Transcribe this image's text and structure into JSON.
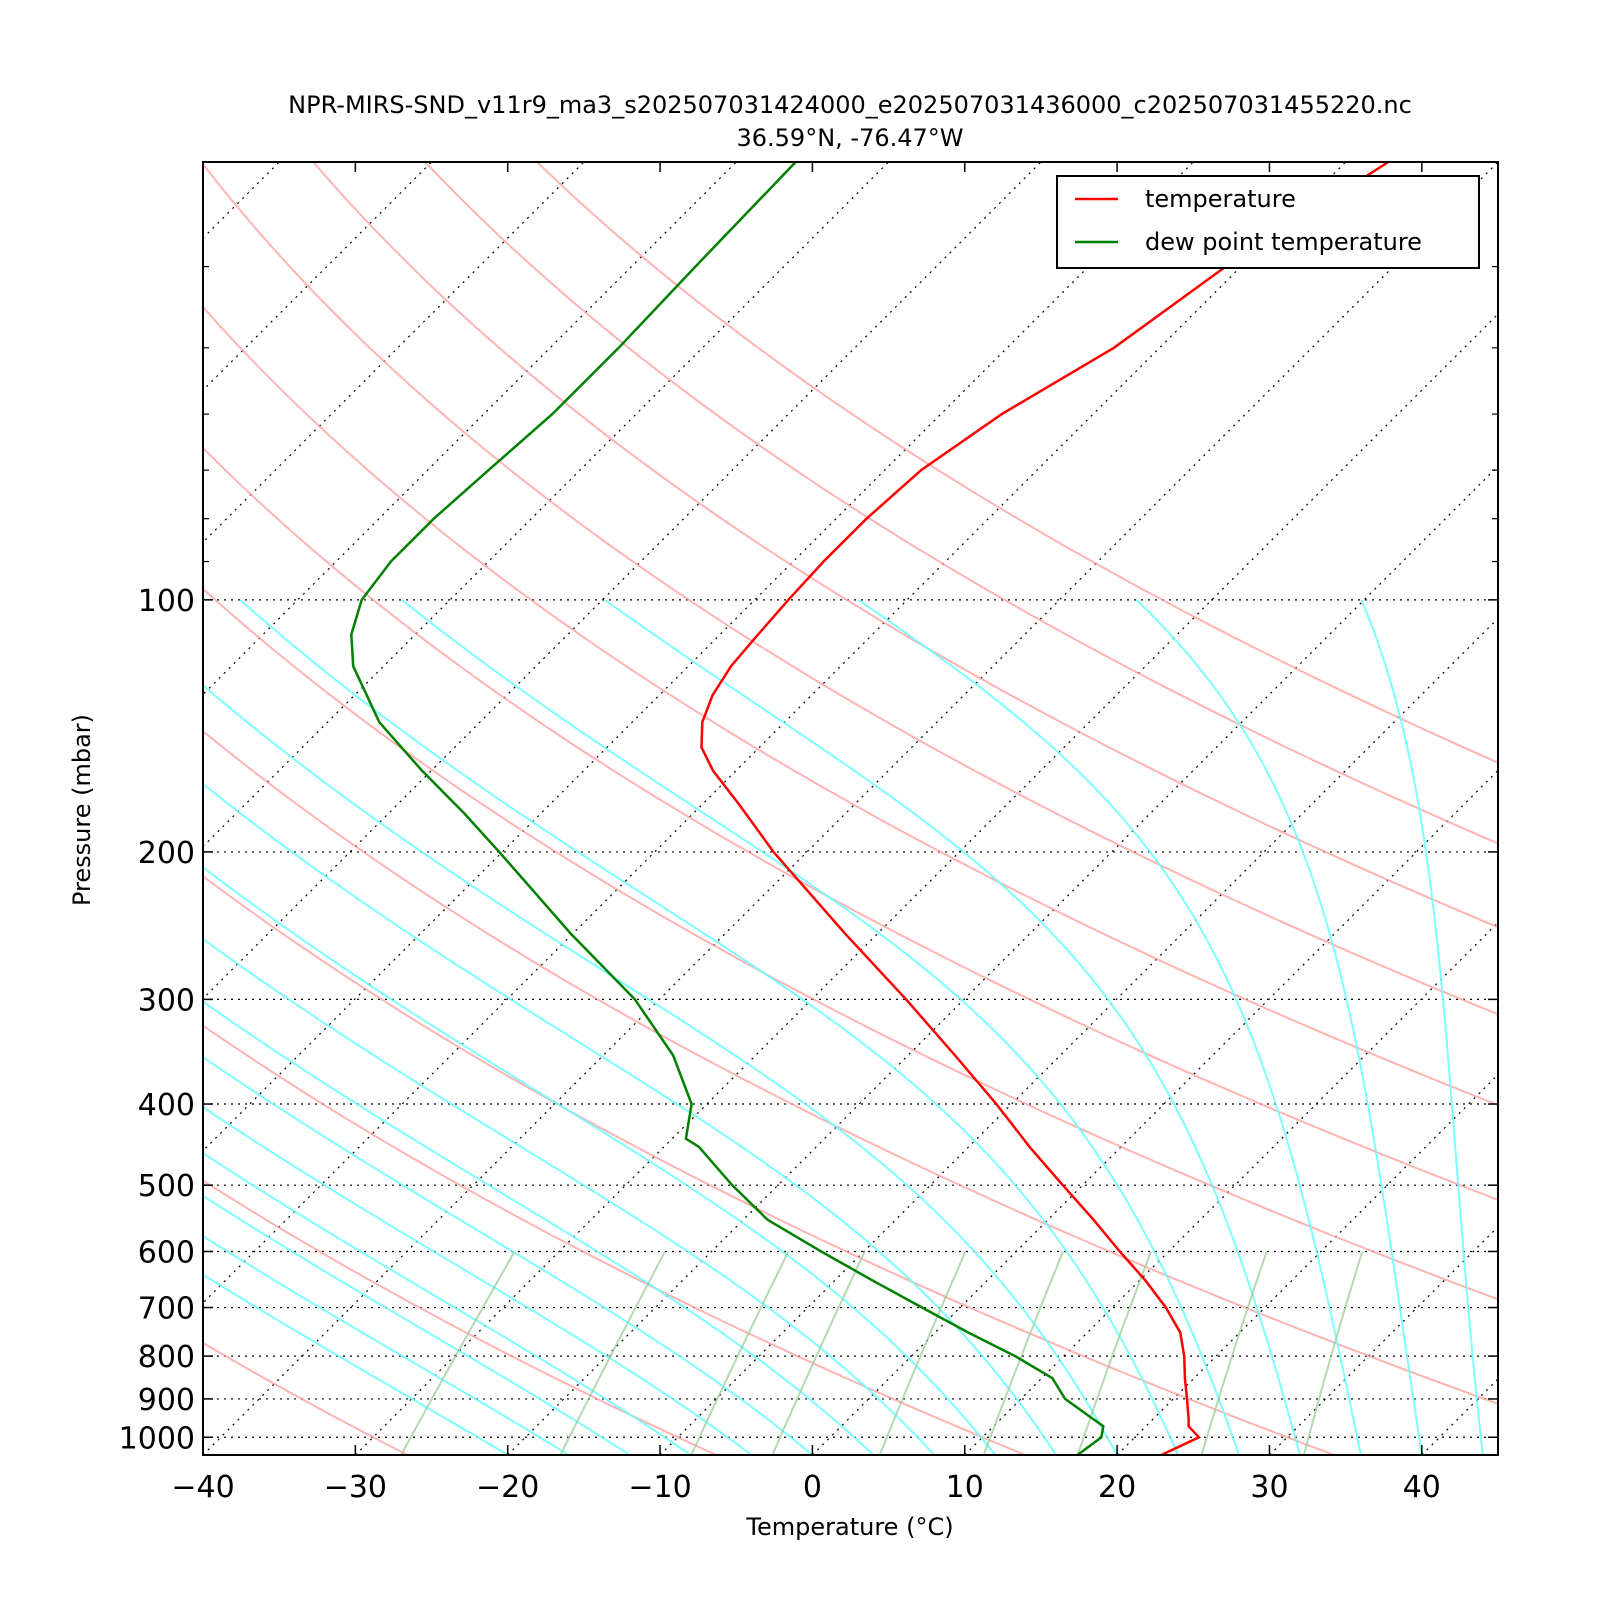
{
  "chart_data": {
    "type": "line",
    "title": "NPR-MIRS-SND_v11r9_ma3_s202507031424000_e202507031436000_c202507031455220.nc",
    "subtitle": "36.59°N, -76.47°W",
    "xlabel": "Temperature (°C)",
    "ylabel": "Pressure (mbar)",
    "xlim": [
      -40,
      45
    ],
    "ylim": [
      1050,
      30
    ],
    "y_scale": "log",
    "skew": true,
    "x_ticks": [
      -40,
      -30,
      -20,
      -10,
      0,
      10,
      20,
      30,
      40
    ],
    "x_tick_labels": [
      "−40",
      "−30",
      "−20",
      "−10",
      "0",
      "10",
      "20",
      "30",
      "40"
    ],
    "y_ticks": [
      100,
      200,
      300,
      400,
      500,
      600,
      700,
      800,
      900,
      1000
    ],
    "y_tick_labels": [
      "100",
      "200",
      "300",
      "400",
      "500",
      "600",
      "700",
      "800",
      "900",
      "1000"
    ],
    "grid": true,
    "legend_position": "top-right",
    "series": [
      {
        "name": "temperature",
        "color": "#ff0000",
        "points": [
          {
            "p": 1050,
            "t": 22.9
          },
          {
            "p": 1000,
            "t": 24.2
          },
          {
            "p": 970,
            "t": 22.8
          },
          {
            "p": 950,
            "t": 22.3
          },
          {
            "p": 900,
            "t": 20.9
          },
          {
            "p": 850,
            "t": 19.4
          },
          {
            "p": 800,
            "t": 17.9
          },
          {
            "p": 750,
            "t": 16.1
          },
          {
            "p": 700,
            "t": 13.5
          },
          {
            "p": 650,
            "t": 10.4
          },
          {
            "p": 600,
            "t": 6.8
          },
          {
            "p": 550,
            "t": 3.0
          },
          {
            "p": 500,
            "t": -1.3
          },
          {
            "p": 450,
            "t": -6.0
          },
          {
            "p": 400,
            "t": -11.0
          },
          {
            "p": 350,
            "t": -16.9
          },
          {
            "p": 300,
            "t": -23.8
          },
          {
            "p": 250,
            "t": -32.2
          },
          {
            "p": 200,
            "t": -42.2
          },
          {
            "p": 175,
            "t": -47.7
          },
          {
            "p": 160,
            "t": -51.5
          },
          {
            "p": 150,
            "t": -53.8
          },
          {
            "p": 140,
            "t": -55.4
          },
          {
            "p": 130,
            "t": -56.5
          },
          {
            "p": 120,
            "t": -57.2
          },
          {
            "p": 110,
            "t": -57.5
          },
          {
            "p": 100,
            "t": -57.8
          },
          {
            "p": 90,
            "t": -58.0
          },
          {
            "p": 80,
            "t": -58.0
          },
          {
            "p": 70,
            "t": -57.6
          },
          {
            "p": 60,
            "t": -56.0
          },
          {
            "p": 50,
            "t": -53.0
          },
          {
            "p": 40,
            "t": -51.0
          },
          {
            "p": 30,
            "t": -47.2
          }
        ]
      },
      {
        "name": "dew point temperature",
        "color": "#008000",
        "points": [
          {
            "p": 1050,
            "t": 17.4
          },
          {
            "p": 1000,
            "t": 17.8
          },
          {
            "p": 970,
            "t": 17.2
          },
          {
            "p": 950,
            "t": 16.0
          },
          {
            "p": 900,
            "t": 12.9
          },
          {
            "p": 850,
            "t": 10.7
          },
          {
            "p": 800,
            "t": 6.8
          },
          {
            "p": 750,
            "t": 2.2
          },
          {
            "p": 700,
            "t": -2.5
          },
          {
            "p": 650,
            "t": -7.5
          },
          {
            "p": 600,
            "t": -12.8
          },
          {
            "p": 550,
            "t": -18.4
          },
          {
            "p": 500,
            "t": -23.0
          },
          {
            "p": 450,
            "t": -27.7
          },
          {
            "p": 440,
            "t": -29.1
          },
          {
            "p": 400,
            "t": -31.0
          },
          {
            "p": 350,
            "t": -35.4
          },
          {
            "p": 300,
            "t": -41.6
          },
          {
            "p": 250,
            "t": -50.2
          },
          {
            "p": 200,
            "t": -60.2
          },
          {
            "p": 180,
            "t": -65.0
          },
          {
            "p": 160,
            "t": -70.6
          },
          {
            "p": 140,
            "t": -76.6
          },
          {
            "p": 120,
            "t": -82.0
          },
          {
            "p": 110,
            "t": -84.2
          },
          {
            "p": 100,
            "t": -85.8
          },
          {
            "p": 90,
            "t": -86.4
          },
          {
            "p": 80,
            "t": -86.4
          },
          {
            "p": 70,
            "t": -86.0
          },
          {
            "p": 60,
            "t": -85.5
          },
          {
            "p": 50,
            "t": -85.5
          },
          {
            "p": 40,
            "t": -85.8
          },
          {
            "p": 30,
            "t": -86.1
          }
        ]
      }
    ],
    "background_lines": {
      "dry_adiabats_color": "#ff9999",
      "moist_adiabats_color": "#66ffff",
      "mixing_ratio_color": "#99cc99",
      "isotherm_color": "#000000"
    }
  }
}
